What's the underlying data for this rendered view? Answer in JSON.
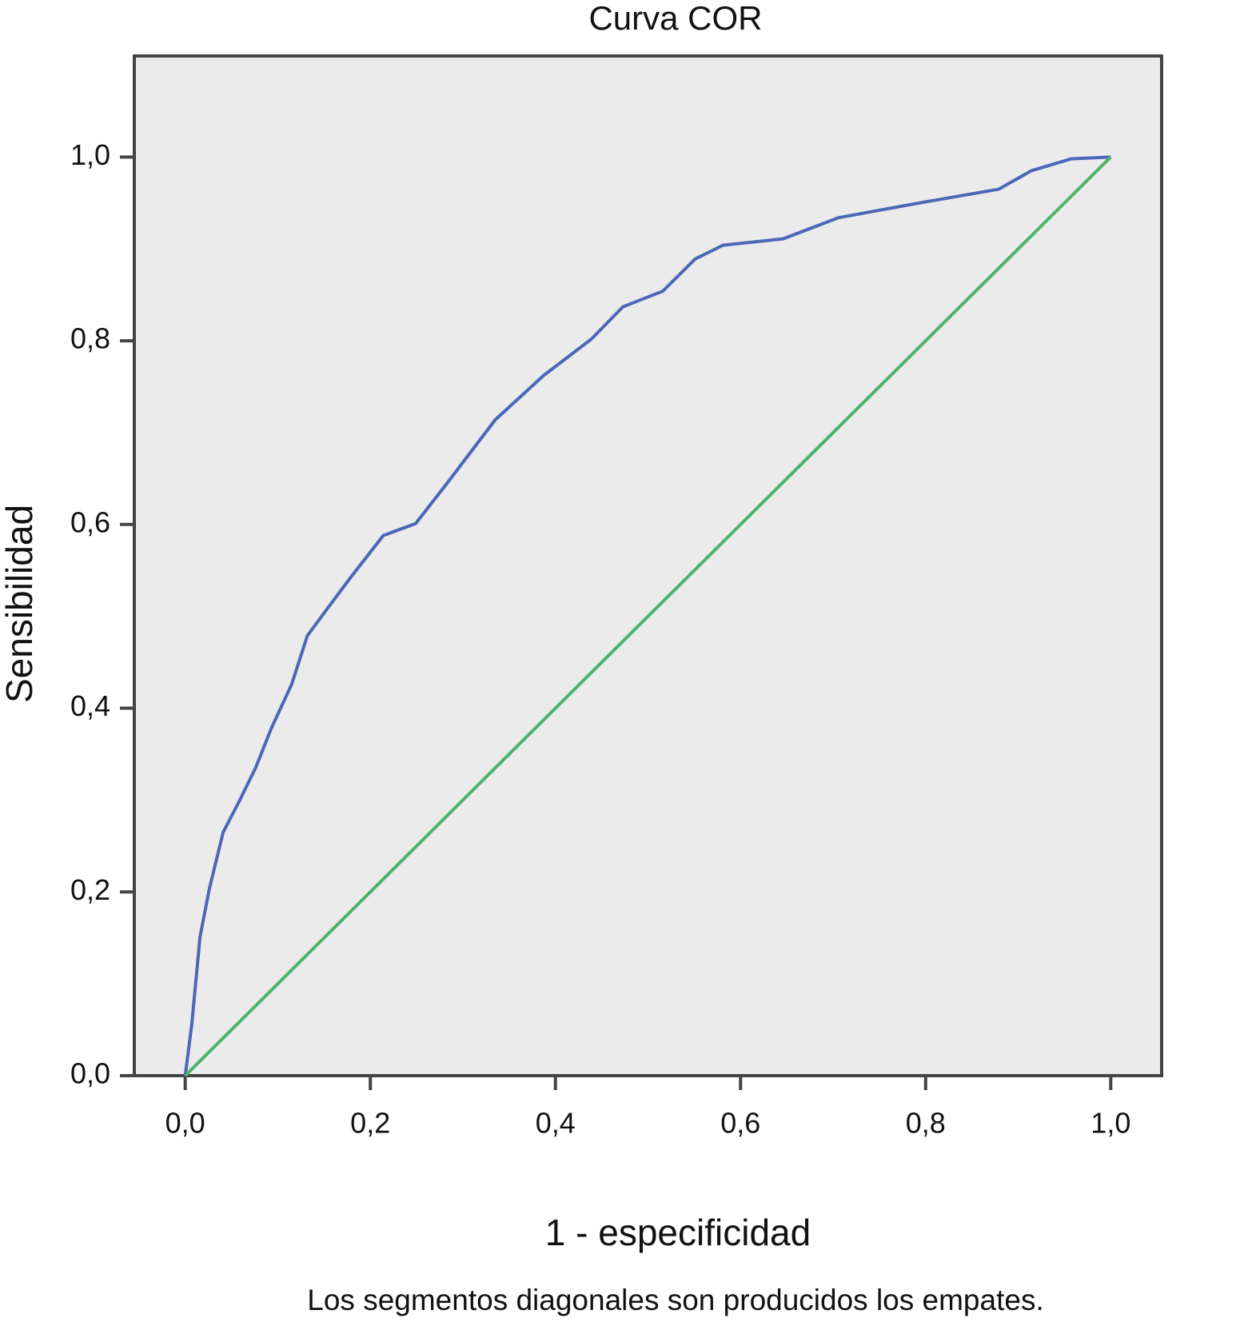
{
  "chart_data": {
    "type": "line",
    "title": "Curva COR",
    "xlabel": "1 - especificidad",
    "ylabel": "Sensibilidad",
    "footnote": "Los segmentos diagonales son producidos los empates.",
    "xlim": [
      -0.055,
      1.055
    ],
    "ylim": [
      0,
      1.11
    ],
    "xticks": [
      {
        "value": 0,
        "label": "0,0"
      },
      {
        "value": 0.2,
        "label": "0,2"
      },
      {
        "value": 0.4,
        "label": "0,4"
      },
      {
        "value": 0.6,
        "label": "0,6"
      },
      {
        "value": 0.8,
        "label": "0,8"
      },
      {
        "value": 1,
        "label": "1,0"
      }
    ],
    "yticks": [
      {
        "value": 0,
        "label": "0,0"
      },
      {
        "value": 0.2,
        "label": "0,2"
      },
      {
        "value": 0.4,
        "label": "0,4"
      },
      {
        "value": 0.6,
        "label": "0,6"
      },
      {
        "value": 0.8,
        "label": "0,8"
      },
      {
        "value": 1,
        "label": "1,0"
      }
    ],
    "grid": false,
    "background": "#ebebeb",
    "series": [
      {
        "color": "#4a67b8",
        "x": [
          0,
          0.007,
          0.016,
          0.026,
          0.041,
          0.059,
          0.076,
          0.093,
          0.115,
          0.132,
          0.154,
          0.18,
          0.214,
          0.249,
          0.283,
          0.335,
          0.387,
          0.439,
          0.473,
          0.516,
          0.551,
          0.581,
          0.646,
          0.706,
          0.793,
          0.879,
          0.914,
          0.957,
          1
        ],
        "values": [
          0,
          0.055,
          0.151,
          0.203,
          0.265,
          0.3,
          0.335,
          0.378,
          0.426,
          0.479,
          0.509,
          0.544,
          0.588,
          0.601,
          0.645,
          0.714,
          0.762,
          0.802,
          0.837,
          0.854,
          0.889,
          0.904,
          0.911,
          0.934,
          0.95,
          0.965,
          0.985,
          0.998,
          1
        ]
      },
      {
        "color": "#4cb36a",
        "x": [
          0,
          1
        ],
        "values": [
          0,
          1
        ]
      }
    ]
  }
}
